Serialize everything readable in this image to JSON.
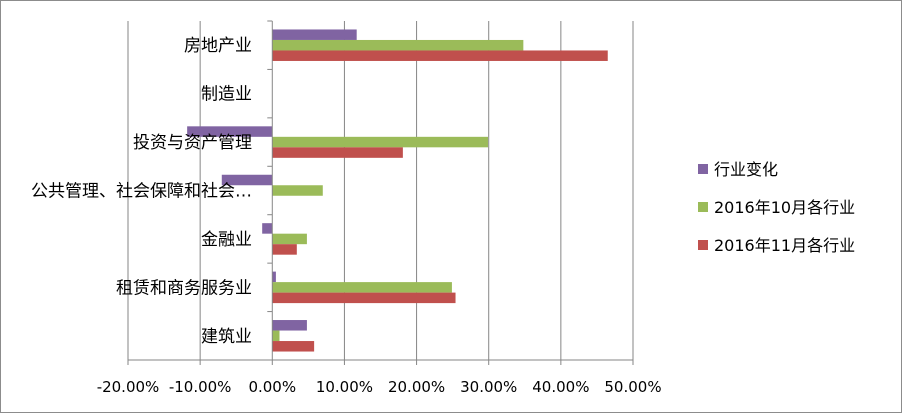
{
  "chart_data": {
    "type": "bar",
    "orientation": "horizontal",
    "categories": [
      "房地产业",
      "制造业",
      "投资与资产管理",
      "公共管理、社会保障和社会…",
      "金融业",
      "租赁和商务服务业",
      "建筑业"
    ],
    "series": [
      {
        "name": "行业变化",
        "color": "#8064a2",
        "values": [
          11.7,
          0,
          -11.8,
          -7.0,
          -1.4,
          0.5,
          4.8
        ]
      },
      {
        "name": "2016年10月各行业",
        "color": "#9bbb59",
        "values": [
          34.8,
          0,
          29.9,
          7.0,
          4.8,
          24.9,
          1.0
        ]
      },
      {
        "name": "2016年11月各行业",
        "color": "#c0504d",
        "values": [
          46.5,
          0,
          18.1,
          0,
          3.4,
          25.4,
          5.8
        ]
      }
    ],
    "xlim": [
      -20,
      50
    ],
    "xticks": [
      -20,
      -10,
      0,
      10,
      20,
      30,
      40,
      50
    ],
    "xtick_labels": [
      "-20.00%",
      "-10.00%",
      "0.00%",
      "10.00%",
      "20.00%",
      "30.00%",
      "40.00%",
      "50.00%"
    ],
    "grid": true,
    "legend_position": "right",
    "title": "",
    "xlabel": "",
    "ylabel": ""
  }
}
